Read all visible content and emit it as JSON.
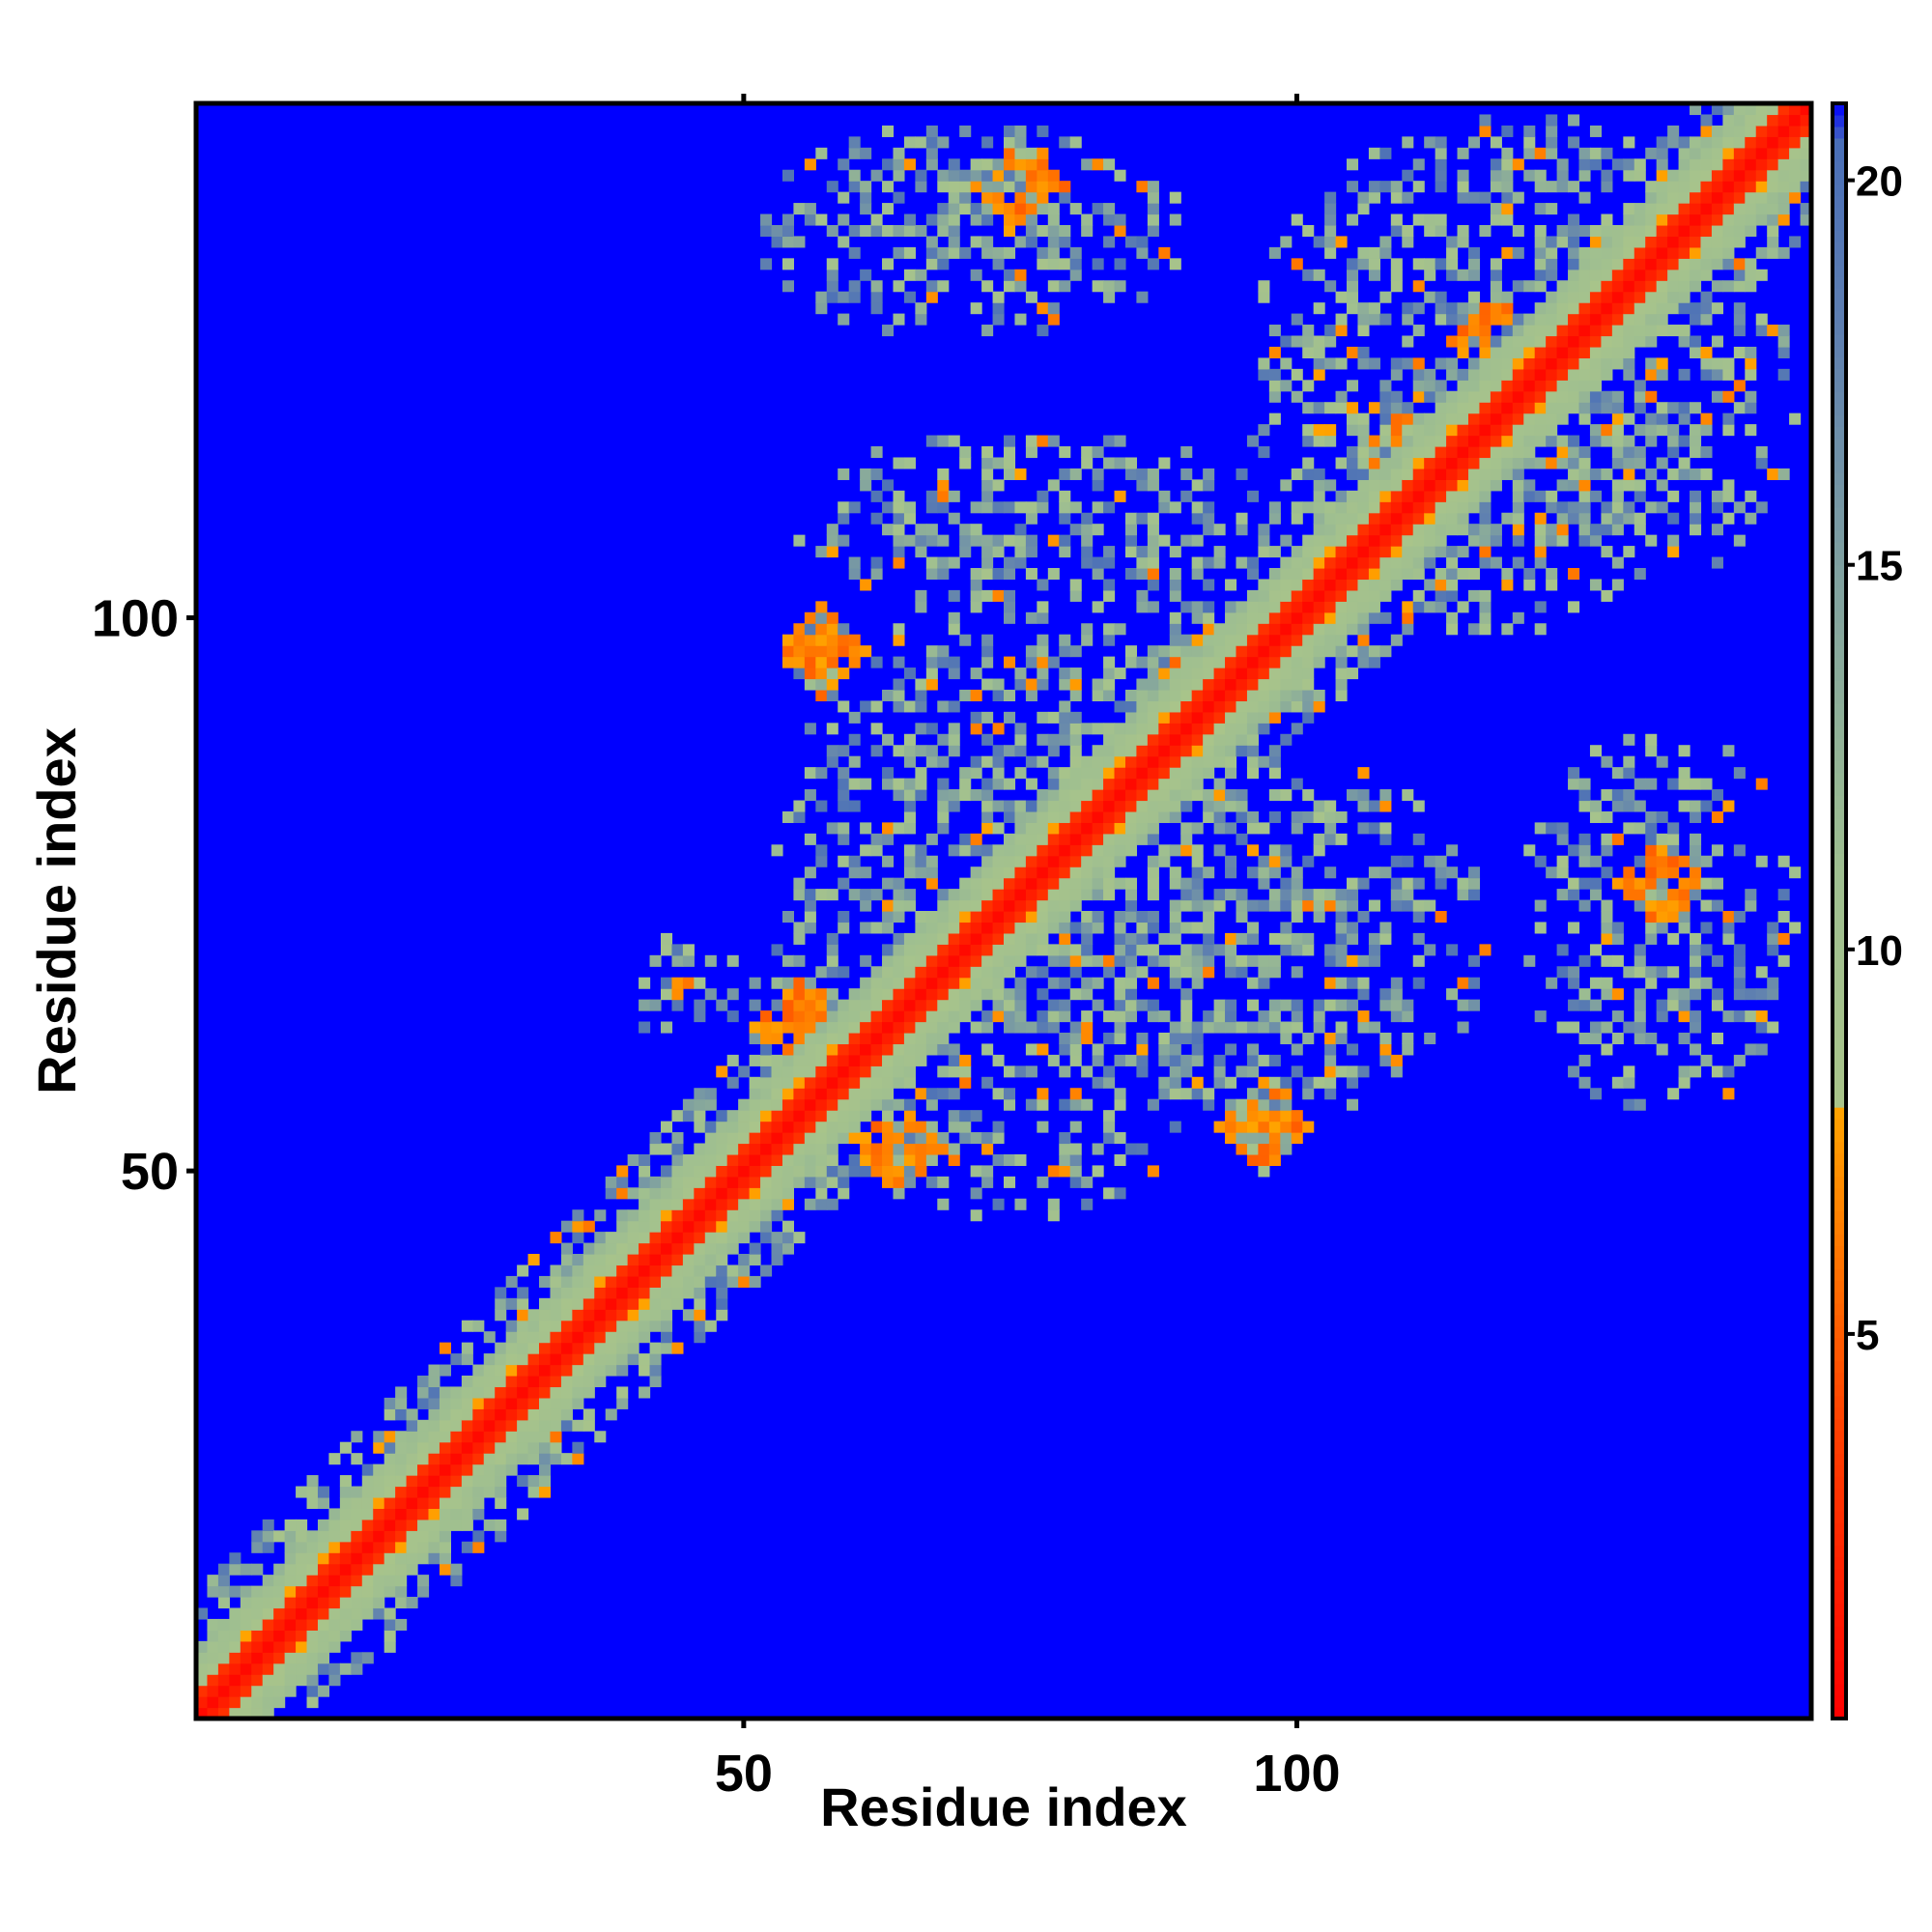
{
  "chart_data": {
    "type": "heatmap",
    "title": "",
    "xlabel": "Residue index",
    "ylabel": "Residue index",
    "n_residues": 146,
    "xlim": [
      1,
      146
    ],
    "ylim": [
      1,
      146
    ],
    "x_ticks": [
      50,
      100
    ],
    "y_ticks": [
      50,
      100
    ],
    "colorbar": {
      "min": 0,
      "max": 21,
      "ticks": [
        5,
        10,
        15,
        20
      ],
      "stops": [
        {
          "value": 0,
          "color": "#ff0000"
        },
        {
          "value": 4,
          "color": "#ff4400"
        },
        {
          "value": 8,
          "color": "#ffa500"
        },
        {
          "value": 8.01,
          "color": "#a9c48a"
        },
        {
          "value": 11,
          "color": "#9fbf90"
        },
        {
          "value": 15,
          "color": "#7fa0a0"
        },
        {
          "value": 18,
          "color": "#5f80b0"
        },
        {
          "value": 20.5,
          "color": "#4a6fb8"
        },
        {
          "value": 21,
          "color": "#0000ff"
        }
      ]
    },
    "background_color": "#0000ff",
    "diagonal": {
      "core_width": 2,
      "color": "#ff0000"
    },
    "contact_regions": [
      {
        "x": [
          52,
          98
        ],
        "y": [
          45,
          103
        ],
        "strength": 0.55
      },
      {
        "x": [
          60,
          118
        ],
        "y": [
          52,
          90
        ],
        "strength": 0.55
      },
      {
        "x": [
          95,
          146
        ],
        "y": [
          98,
          146
        ],
        "strength": 0.6
      },
      {
        "x": [
          51,
          90
        ],
        "y": [
          125,
          145
        ],
        "strength": 0.5
      },
      {
        "x": [
          53,
          100
        ],
        "y": [
          100,
          117
        ],
        "strength": 0.5
      },
      {
        "x": [
          120,
          146
        ],
        "y": [
          55,
          90
        ],
        "strength": 0.5
      },
      {
        "x": [
          38,
          52
        ],
        "y": [
          62,
          72
        ],
        "strength": 0.4
      }
    ],
    "hotspots": [
      {
        "x": 75,
        "y": 139
      },
      {
        "x": 57,
        "y": 97
      },
      {
        "x": 55,
        "y": 63
      },
      {
        "x": 64,
        "y": 52
      },
      {
        "x": 92,
        "y": 95
      },
      {
        "x": 97,
        "y": 54
      },
      {
        "x": 133,
        "y": 76
      },
      {
        "x": 118,
        "y": 125
      },
      {
        "x": 110,
        "y": 115
      }
    ]
  }
}
